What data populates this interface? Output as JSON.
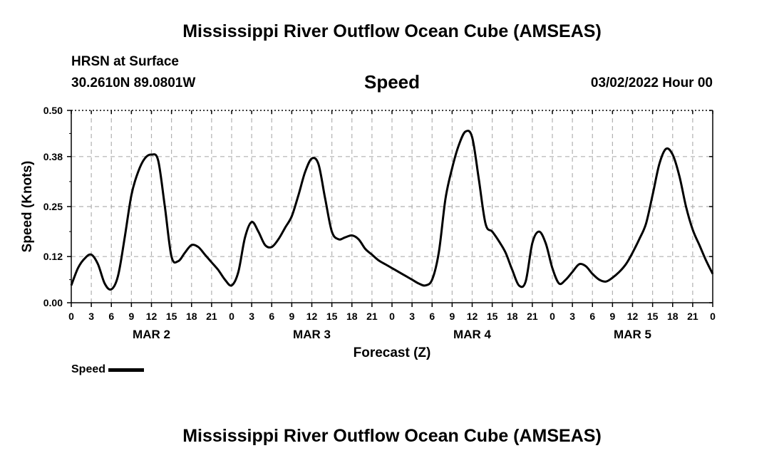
{
  "page": {
    "title_top": "Mississippi River Outflow Ocean Cube (AMSEAS)",
    "title_bottom": "Mississippi River Outflow Ocean Cube (AMSEAS)",
    "station": "HRSN at Surface",
    "coords": "30.2610N  89.0801W",
    "subtitle": "Speed",
    "datetime": "03/02/2022 Hour 00"
  },
  "chart_data": {
    "type": "line",
    "title": "Speed",
    "xlabel": "Forecast (Z)",
    "ylabel": "Speed (Knots)",
    "xlim": [
      0,
      96
    ],
    "ylim": [
      0,
      0.5
    ],
    "grid": true,
    "y_ticks": [
      0.0,
      0.12,
      0.25,
      0.38,
      0.5
    ],
    "y_tick_labels": [
      "0.00",
      "0.12",
      "0.25",
      "0.38",
      "0.50"
    ],
    "x_ticks": [
      0,
      3,
      6,
      9,
      12,
      15,
      18,
      21,
      24,
      27,
      30,
      33,
      36,
      39,
      42,
      45,
      48,
      51,
      54,
      57,
      60,
      63,
      66,
      69,
      72,
      75,
      78,
      81,
      84,
      87,
      90,
      93,
      96
    ],
    "x_tick_labels": [
      "0",
      "3",
      "6",
      "9",
      "12",
      "15",
      "18",
      "21",
      "0",
      "3",
      "6",
      "9",
      "12",
      "15",
      "18",
      "21",
      "0",
      "3",
      "6",
      "9",
      "12",
      "15",
      "18",
      "21",
      "0",
      "3",
      "6",
      "9",
      "12",
      "15",
      "18",
      "21",
      "0"
    ],
    "day_labels": [
      {
        "x": 12,
        "label": "MAR 2"
      },
      {
        "x": 36,
        "label": "MAR 3"
      },
      {
        "x": 60,
        "label": "MAR 4"
      },
      {
        "x": 84,
        "label": "MAR 5"
      }
    ],
    "legend": {
      "label": "Speed",
      "position": "bottom-left"
    },
    "series": [
      {
        "name": "Speed",
        "color": "#000000",
        "x": [
          0,
          1,
          2,
          3,
          4,
          5,
          6,
          7,
          8,
          9,
          10,
          11,
          12,
          13,
          14,
          15,
          16,
          17,
          18,
          19,
          20,
          21,
          22,
          23,
          24,
          25,
          26,
          27,
          28,
          29,
          30,
          31,
          32,
          33,
          34,
          35,
          36,
          37,
          38,
          39,
          40,
          41,
          42,
          43,
          44,
          45,
          46,
          47,
          48,
          49,
          50,
          51,
          52,
          53,
          54,
          55,
          56,
          57,
          58,
          59,
          60,
          61,
          62,
          63,
          64,
          65,
          66,
          67,
          68,
          69,
          70,
          71,
          72,
          73,
          74,
          75,
          76,
          77,
          78,
          79,
          80,
          81,
          82,
          83,
          84,
          85,
          86,
          87,
          88,
          89,
          90,
          91,
          92,
          93,
          94,
          95,
          96
        ],
        "values": [
          0.045,
          0.09,
          0.115,
          0.125,
          0.1,
          0.05,
          0.035,
          0.07,
          0.17,
          0.28,
          0.34,
          0.375,
          0.385,
          0.37,
          0.25,
          0.12,
          0.108,
          0.13,
          0.15,
          0.145,
          0.125,
          0.105,
          0.085,
          0.06,
          0.045,
          0.08,
          0.17,
          0.21,
          0.185,
          0.15,
          0.145,
          0.165,
          0.195,
          0.225,
          0.28,
          0.34,
          0.375,
          0.36,
          0.27,
          0.185,
          0.165,
          0.17,
          0.175,
          0.165,
          0.14,
          0.125,
          0.11,
          0.1,
          0.09,
          0.08,
          0.07,
          0.06,
          0.05,
          0.045,
          0.06,
          0.13,
          0.27,
          0.35,
          0.41,
          0.445,
          0.43,
          0.32,
          0.205,
          0.185,
          0.16,
          0.13,
          0.085,
          0.045,
          0.055,
          0.155,
          0.185,
          0.155,
          0.09,
          0.05,
          0.06,
          0.08,
          0.1,
          0.095,
          0.075,
          0.06,
          0.055,
          0.065,
          0.08,
          0.1,
          0.13,
          0.165,
          0.205,
          0.28,
          0.36,
          0.4,
          0.385,
          0.33,
          0.25,
          0.19,
          0.15,
          0.11,
          0.075
        ]
      }
    ]
  }
}
